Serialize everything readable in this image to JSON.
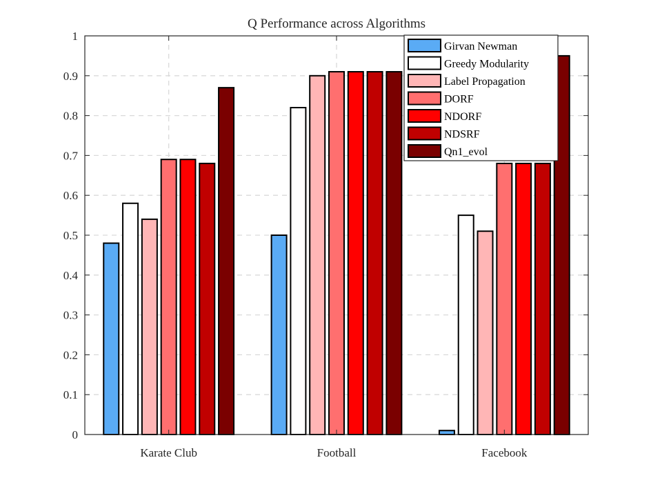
{
  "chart_data": {
    "type": "bar",
    "title": "Q Performance across Algorithms",
    "xlabel": "",
    "ylabel": "",
    "categories": [
      "Karate Club",
      "Football",
      "Facebook"
    ],
    "ylim": [
      0,
      1
    ],
    "yticks": [
      0,
      0.1,
      0.2,
      0.3,
      0.4,
      0.5,
      0.6,
      0.7,
      0.8,
      0.9,
      1
    ],
    "ytick_labels": [
      "0",
      "0.1",
      "0.2",
      "0.3",
      "0.4",
      "0.5",
      "0.6",
      "0.7",
      "0.8",
      "0.9",
      "1"
    ],
    "grid": true,
    "legend_position": "top-right",
    "series": [
      {
        "name": "Girvan Newman",
        "color": "#5aabf5",
        "values": [
          0.48,
          0.5,
          0.01
        ]
      },
      {
        "name": "Greedy Modularity",
        "color": "#ffffff",
        "values": [
          0.58,
          0.82,
          0.55
        ]
      },
      {
        "name": "Label Propagation",
        "color": "#ffb6b6",
        "values": [
          0.54,
          0.9,
          0.51
        ]
      },
      {
        "name": "DORF",
        "color": "#ff6f6f",
        "values": [
          0.69,
          0.91,
          0.68
        ]
      },
      {
        "name": "NDORF",
        "color": "#ff0000",
        "values": [
          0.69,
          0.91,
          0.68
        ]
      },
      {
        "name": "NDSRF",
        "color": "#c00000",
        "values": [
          0.68,
          0.91,
          0.68
        ]
      },
      {
        "name": "Qn1_evol",
        "color": "#7a0000",
        "values": [
          0.87,
          0.91,
          0.95
        ]
      }
    ]
  }
}
